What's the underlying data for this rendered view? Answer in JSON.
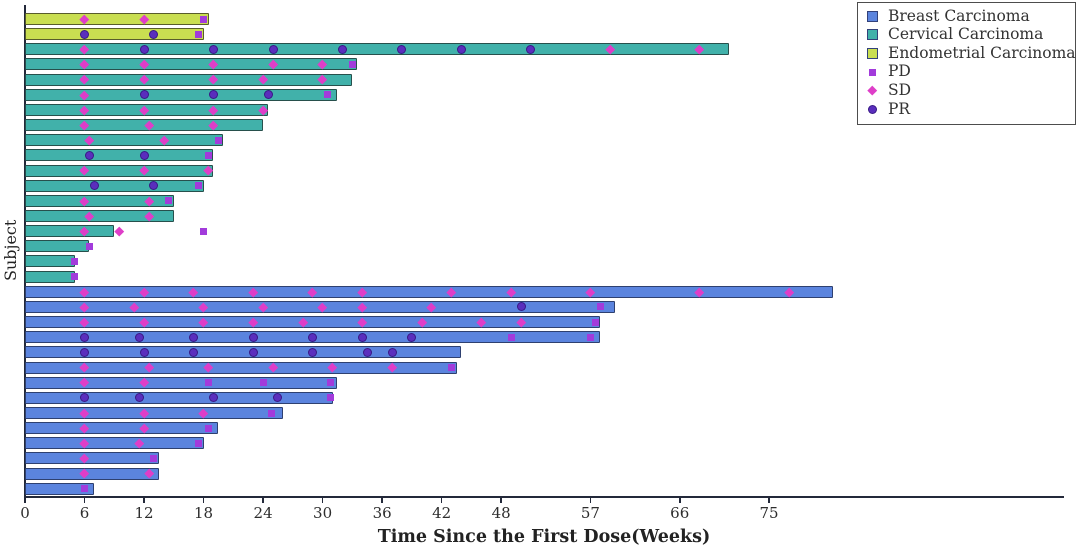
{
  "chart_data": {
    "type": "bar",
    "subtype": "swimmer-plot",
    "orientation": "horizontal",
    "xlabel": "Time Since the First Dose(Weeks)",
    "ylabel": "Subject",
    "x_ticks": [
      0,
      6,
      12,
      18,
      24,
      30,
      36,
      42,
      48,
      57,
      66,
      75
    ],
    "xlim": [
      0,
      104
    ],
    "grid": false,
    "legend_position": "top-right",
    "series": {
      "breast": {
        "label": "Breast Carcinoma",
        "fill": "#5b84de",
        "edge": "#2e4070"
      },
      "cervical": {
        "label": "Cervical Carcinoma",
        "fill": "#41b1aa",
        "edge": "#27504c"
      },
      "endometrial": {
        "label": "Endometrial Carcinoma",
        "fill": "#c9de51",
        "edge": "#585c2b"
      }
    },
    "marker_types": {
      "PD": {
        "label": "PD",
        "shape": "square",
        "color": "#a23bdb"
      },
      "SD": {
        "label": "SD",
        "shape": "diamond",
        "color": "#de3ec8"
      },
      "PR": {
        "label": "PR",
        "shape": "circle",
        "color": "#5a2ebd"
      }
    },
    "bars": [
      {
        "type": "endometrial",
        "end": 18.5,
        "markers": [
          {
            "w": 6,
            "m": "SD"
          },
          {
            "w": 12,
            "m": "SD"
          },
          {
            "w": 18,
            "m": "PD"
          }
        ]
      },
      {
        "type": "endometrial",
        "end": 18,
        "markers": [
          {
            "w": 6,
            "m": "PR"
          },
          {
            "w": 13,
            "m": "PR"
          },
          {
            "w": 17.5,
            "m": "PD"
          }
        ]
      },
      {
        "type": "cervical",
        "end": 71,
        "markers": [
          {
            "w": 6,
            "m": "SD"
          },
          {
            "w": 12,
            "m": "PR"
          },
          {
            "w": 19,
            "m": "PR"
          },
          {
            "w": 25,
            "m": "PR"
          },
          {
            "w": 32,
            "m": "PR"
          },
          {
            "w": 38,
            "m": "PR"
          },
          {
            "w": 44,
            "m": "PR"
          },
          {
            "w": 51,
            "m": "PR"
          },
          {
            "w": 59,
            "m": "SD"
          },
          {
            "w": 68,
            "m": "SD"
          }
        ]
      },
      {
        "type": "cervical",
        "end": 33.5,
        "markers": [
          {
            "w": 6,
            "m": "SD"
          },
          {
            "w": 12,
            "m": "SD"
          },
          {
            "w": 19,
            "m": "SD"
          },
          {
            "w": 25,
            "m": "SD"
          },
          {
            "w": 30,
            "m": "SD"
          },
          {
            "w": 33,
            "m": "PD"
          }
        ]
      },
      {
        "type": "cervical",
        "end": 33,
        "markers": [
          {
            "w": 6,
            "m": "SD"
          },
          {
            "w": 12,
            "m": "SD"
          },
          {
            "w": 19,
            "m": "SD"
          },
          {
            "w": 24,
            "m": "SD"
          },
          {
            "w": 30,
            "m": "SD"
          }
        ]
      },
      {
        "type": "cervical",
        "end": 31.5,
        "markers": [
          {
            "w": 6,
            "m": "SD"
          },
          {
            "w": 12,
            "m": "PR"
          },
          {
            "w": 19,
            "m": "PR"
          },
          {
            "w": 24.5,
            "m": "PR"
          },
          {
            "w": 30.5,
            "m": "PD"
          }
        ]
      },
      {
        "type": "cervical",
        "end": 24.5,
        "markers": [
          {
            "w": 6,
            "m": "SD"
          },
          {
            "w": 12,
            "m": "SD"
          },
          {
            "w": 19,
            "m": "SD"
          },
          {
            "w": 24,
            "m": "SD"
          }
        ]
      },
      {
        "type": "cervical",
        "end": 24,
        "markers": [
          {
            "w": 6,
            "m": "SD"
          },
          {
            "w": 12.5,
            "m": "SD"
          },
          {
            "w": 19,
            "m": "SD"
          }
        ]
      },
      {
        "type": "cervical",
        "end": 20,
        "markers": [
          {
            "w": 6.5,
            "m": "SD"
          },
          {
            "w": 14,
            "m": "SD"
          },
          {
            "w": 19.5,
            "m": "PD"
          }
        ]
      },
      {
        "type": "cervical",
        "end": 19,
        "markers": [
          {
            "w": 6.5,
            "m": "PR"
          },
          {
            "w": 12,
            "m": "PR"
          },
          {
            "w": 18.5,
            "m": "PD"
          }
        ]
      },
      {
        "type": "cervical",
        "end": 19,
        "markers": [
          {
            "w": 6,
            "m": "SD"
          },
          {
            "w": 12,
            "m": "SD"
          },
          {
            "w": 18.5,
            "m": "SD"
          }
        ]
      },
      {
        "type": "cervical",
        "end": 18,
        "markers": [
          {
            "w": 7,
            "m": "PR"
          },
          {
            "w": 13,
            "m": "PR"
          },
          {
            "w": 17.5,
            "m": "PD"
          }
        ]
      },
      {
        "type": "cervical",
        "end": 15,
        "markers": [
          {
            "w": 6,
            "m": "SD"
          },
          {
            "w": 12.5,
            "m": "SD"
          },
          {
            "w": 14.5,
            "m": "PD"
          }
        ]
      },
      {
        "type": "cervical",
        "end": 15,
        "markers": [
          {
            "w": 6.5,
            "m": "SD"
          },
          {
            "w": 12.5,
            "m": "SD"
          }
        ]
      },
      {
        "type": "cervical",
        "end": 9,
        "markers": [
          {
            "w": 6,
            "m": "SD"
          },
          {
            "w": 9.5,
            "m": "SD"
          },
          {
            "w": 18,
            "m": "PD"
          }
        ]
      },
      {
        "type": "cervical",
        "end": 6.5,
        "markers": [
          {
            "w": 6.5,
            "m": "PD"
          }
        ]
      },
      {
        "type": "cervical",
        "end": 5,
        "markers": [
          {
            "w": 5,
            "m": "PD"
          }
        ]
      },
      {
        "type": "cervical",
        "end": 5,
        "markers": [
          {
            "w": 5,
            "m": "PD"
          }
        ]
      },
      {
        "type": "breast",
        "end": 81.5,
        "markers": [
          {
            "w": 6,
            "m": "SD"
          },
          {
            "w": 12,
            "m": "SD"
          },
          {
            "w": 17,
            "m": "SD"
          },
          {
            "w": 23,
            "m": "SD"
          },
          {
            "w": 29,
            "m": "SD"
          },
          {
            "w": 34,
            "m": "SD"
          },
          {
            "w": 43,
            "m": "SD"
          },
          {
            "w": 49,
            "m": "SD"
          },
          {
            "w": 57,
            "m": "SD"
          },
          {
            "w": 68,
            "m": "SD"
          },
          {
            "w": 77,
            "m": "SD"
          }
        ]
      },
      {
        "type": "breast",
        "end": 59.5,
        "markers": [
          {
            "w": 6,
            "m": "SD"
          },
          {
            "w": 11,
            "m": "SD"
          },
          {
            "w": 18,
            "m": "SD"
          },
          {
            "w": 24,
            "m": "SD"
          },
          {
            "w": 30,
            "m": "SD"
          },
          {
            "w": 34,
            "m": "SD"
          },
          {
            "w": 41,
            "m": "SD"
          },
          {
            "w": 50,
            "m": "PR"
          },
          {
            "w": 58,
            "m": "PD"
          }
        ]
      },
      {
        "type": "breast",
        "end": 58,
        "markers": [
          {
            "w": 6,
            "m": "SD"
          },
          {
            "w": 12,
            "m": "SD"
          },
          {
            "w": 18,
            "m": "SD"
          },
          {
            "w": 23,
            "m": "SD"
          },
          {
            "w": 28,
            "m": "SD"
          },
          {
            "w": 34,
            "m": "SD"
          },
          {
            "w": 40,
            "m": "SD"
          },
          {
            "w": 46,
            "m": "SD"
          },
          {
            "w": 50,
            "m": "SD"
          },
          {
            "w": 57.5,
            "m": "PD"
          }
        ]
      },
      {
        "type": "breast",
        "end": 58,
        "markers": [
          {
            "w": 6,
            "m": "PR"
          },
          {
            "w": 11.5,
            "m": "PR"
          },
          {
            "w": 17,
            "m": "PR"
          },
          {
            "w": 23,
            "m": "PR"
          },
          {
            "w": 29,
            "m": "PR"
          },
          {
            "w": 34,
            "m": "PR"
          },
          {
            "w": 39,
            "m": "PR"
          },
          {
            "w": 49,
            "m": "PD"
          },
          {
            "w": 57,
            "m": "PD"
          }
        ]
      },
      {
        "type": "breast",
        "end": 44,
        "markers": [
          {
            "w": 6,
            "m": "PR"
          },
          {
            "w": 12,
            "m": "PR"
          },
          {
            "w": 17,
            "m": "PR"
          },
          {
            "w": 23,
            "m": "PR"
          },
          {
            "w": 29,
            "m": "PR"
          },
          {
            "w": 34.5,
            "m": "PR"
          },
          {
            "w": 37,
            "m": "PR"
          }
        ]
      },
      {
        "type": "breast",
        "end": 43.5,
        "markers": [
          {
            "w": 6,
            "m": "SD"
          },
          {
            "w": 12.5,
            "m": "SD"
          },
          {
            "w": 18.5,
            "m": "SD"
          },
          {
            "w": 25,
            "m": "SD"
          },
          {
            "w": 31,
            "m": "SD"
          },
          {
            "w": 37,
            "m": "SD"
          },
          {
            "w": 43,
            "m": "PD"
          }
        ]
      },
      {
        "type": "breast",
        "end": 31.5,
        "markers": [
          {
            "w": 6,
            "m": "SD"
          },
          {
            "w": 12,
            "m": "SD"
          },
          {
            "w": 18.5,
            "m": "PD"
          },
          {
            "w": 24,
            "m": "PD"
          },
          {
            "w": 30.8,
            "m": "PD"
          }
        ]
      },
      {
        "type": "breast",
        "end": 31,
        "markers": [
          {
            "w": 6,
            "m": "PR"
          },
          {
            "w": 11.5,
            "m": "PR"
          },
          {
            "w": 19,
            "m": "PR"
          },
          {
            "w": 25.5,
            "m": "PR"
          },
          {
            "w": 30.8,
            "m": "PD"
          }
        ]
      },
      {
        "type": "breast",
        "end": 26,
        "markers": [
          {
            "w": 6,
            "m": "SD"
          },
          {
            "w": 12,
            "m": "SD"
          },
          {
            "w": 18,
            "m": "SD"
          },
          {
            "w": 24.8,
            "m": "PD"
          }
        ]
      },
      {
        "type": "breast",
        "end": 19.5,
        "markers": [
          {
            "w": 6,
            "m": "SD"
          },
          {
            "w": 12,
            "m": "SD"
          },
          {
            "w": 18.5,
            "m": "PD"
          }
        ]
      },
      {
        "type": "breast",
        "end": 18,
        "markers": [
          {
            "w": 6,
            "m": "SD"
          },
          {
            "w": 11.5,
            "m": "SD"
          },
          {
            "w": 17.5,
            "m": "PD"
          }
        ]
      },
      {
        "type": "breast",
        "end": 13.5,
        "markers": [
          {
            "w": 6,
            "m": "SD"
          },
          {
            "w": 13,
            "m": "PD"
          }
        ]
      },
      {
        "type": "breast",
        "end": 13.5,
        "markers": [
          {
            "w": 6,
            "m": "SD"
          },
          {
            "w": 12.5,
            "m": "SD"
          }
        ]
      },
      {
        "type": "breast",
        "end": 7,
        "markers": [
          {
            "w": 6,
            "m": "PD"
          }
        ]
      }
    ],
    "legend_order": [
      "breast",
      "cervical",
      "endometrial",
      "PD",
      "SD",
      "PR"
    ]
  },
  "colors": {
    "axis": "#23293a",
    "tick_label": "#2d2d2d",
    "legend_border": "#4d4d4d",
    "legend_swatch_edge": "#32417a",
    "background": "#ffffff"
  }
}
